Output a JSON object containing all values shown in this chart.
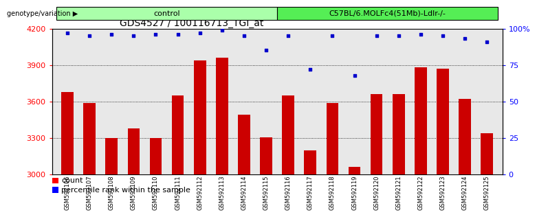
{
  "title": "GDS4527 / 100116713_TGI_at",
  "samples": [
    "GSM592106",
    "GSM592107",
    "GSM592108",
    "GSM592109",
    "GSM592110",
    "GSM592111",
    "GSM592112",
    "GSM592113",
    "GSM592114",
    "GSM592115",
    "GSM592116",
    "GSM592117",
    "GSM592118",
    "GSM592119",
    "GSM592120",
    "GSM592121",
    "GSM592122",
    "GSM592123",
    "GSM592124",
    "GSM592125"
  ],
  "counts": [
    3680,
    3590,
    3300,
    3380,
    3300,
    3650,
    3940,
    3960,
    3490,
    3305,
    3650,
    3195,
    3590,
    3060,
    3660,
    3660,
    3880,
    3870,
    3620,
    3340
  ],
  "percentile_ranks": [
    97,
    95,
    96,
    95,
    96,
    96,
    97,
    99,
    95,
    85,
    95,
    72,
    95,
    68,
    95,
    95,
    96,
    95,
    93,
    91
  ],
  "group_labels": [
    "control",
    "C57BL/6.MOLFc4(51Mb)-Ldlr-/-"
  ],
  "group_sizes": [
    10,
    10
  ],
  "group_colors": [
    "#aaffaa",
    "#55ee55"
  ],
  "bar_color": "#cc0000",
  "dot_color": "#0000cc",
  "ylim": [
    3000,
    4200
  ],
  "yticks_left": [
    3000,
    3300,
    3600,
    3900,
    4200
  ],
  "yticks_right_labels": [
    "0",
    "25",
    "50",
    "75",
    "100%"
  ],
  "background_color": "#ffffff",
  "plot_bg_color": "#e8e8e8",
  "label_fontsize": 8,
  "title_fontsize": 10
}
